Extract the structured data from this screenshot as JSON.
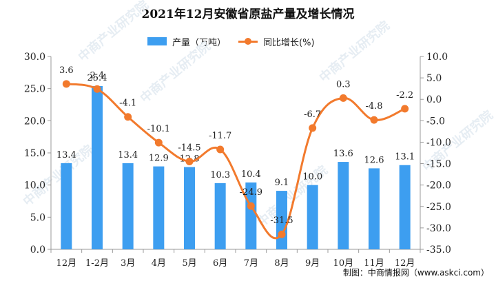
{
  "title": "2021年12月安徽省原盐产量及增长情况",
  "source": "制图：中商情报网（www.askci.com）",
  "watermark": "中商产业研究院",
  "colors": {
    "bar": "#3d9ef0",
    "line": "#f27a2d",
    "axis": "#999999",
    "text": "#222222"
  },
  "chart_data": {
    "type": "bar+line",
    "categories": [
      "12月",
      "1-2月",
      "3月",
      "4月",
      "5月",
      "6月",
      "7月",
      "8月",
      "9月",
      "10月",
      "11月",
      "12月"
    ],
    "series": [
      {
        "name": "产量（万吨）",
        "type": "bar",
        "axis": "left",
        "values": [
          13.4,
          25.4,
          13.4,
          12.9,
          12.8,
          10.3,
          10.4,
          9.1,
          10.0,
          13.6,
          12.6,
          13.1
        ]
      },
      {
        "name": "同比增长(%)",
        "type": "line",
        "axis": "right",
        "values": [
          3.6,
          2.4,
          -4.1,
          -10.1,
          -14.5,
          -11.7,
          -24.9,
          -31.5,
          -6.7,
          0.3,
          -4.8,
          -2.2
        ]
      }
    ],
    "line_labels": [
      "3.6",
      "2.4",
      "-4.1",
      "-10.1",
      "-14.5",
      "-11.7",
      "-24.9",
      "-31.5",
      "-6.7",
      "0.3",
      "-4.8",
      "-2.2"
    ],
    "y_left": {
      "min": 0,
      "max": 30,
      "ticks": [
        "0.0",
        "5.0",
        "10.0",
        "15.0",
        "20.0",
        "25.0",
        "30.0"
      ]
    },
    "y_right": {
      "min": -35,
      "max": 10,
      "ticks": [
        "-35.0",
        "-30.0",
        "-25.0",
        "-20.0",
        "-15.0",
        "-10.0",
        "-5.0",
        "0.0",
        "5.0",
        "10.0"
      ]
    },
    "legend_position": "top-center",
    "grid": false
  }
}
